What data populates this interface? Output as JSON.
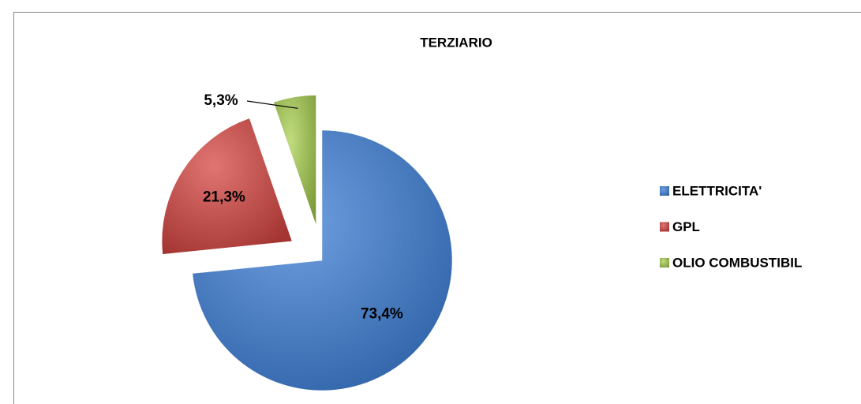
{
  "chart_data": {
    "type": "pie",
    "title": "TERZIARIO",
    "categories": [
      "ELETTRICITA'",
      "GPL",
      "OLIO COMBUSTIBIL"
    ],
    "values": [
      73.4,
      21.3,
      5.3
    ],
    "value_labels": [
      "73,4%",
      "21,3%",
      "5,3%"
    ],
    "colors": [
      "#4a7ebb",
      "#c0504d",
      "#9bbb59"
    ],
    "legend": "right"
  }
}
